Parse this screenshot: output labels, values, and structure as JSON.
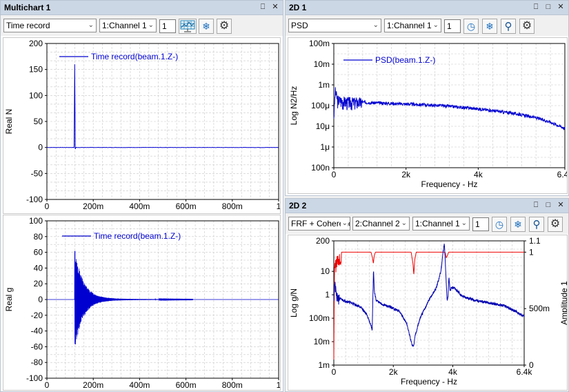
{
  "panels": {
    "multichart": {
      "title": "Multichart 1",
      "controls": {
        "pin": "⎕",
        "close": "✕"
      },
      "view_select": "Time record",
      "channel_select": "1:Channel 1",
      "spin_value": "1",
      "icons": [
        "waterfall-icon",
        "freeze-icon",
        "settings-icon"
      ]
    },
    "twod1": {
      "title": "2D 1",
      "controls": {
        "pin": "⎕",
        "max": "□",
        "close": "✕"
      },
      "view_select": "PSD",
      "channel_select": "1:Channel 1",
      "spin_value": "1",
      "icons": [
        "gauge-icon",
        "freeze-icon",
        "zoom-icon",
        "settings-icon"
      ]
    },
    "twod2": {
      "title": "2D 2",
      "controls": {
        "pin": "⎕",
        "max": "□",
        "close": "✕"
      },
      "view_select": "FRF + Coherence",
      "channel_select_a": "2:Channel 2",
      "channel_select_b": "1:Channel 1",
      "spin_value": "1",
      "icons": [
        "gauge-icon",
        "freeze-icon",
        "zoom-icon",
        "settings-icon"
      ]
    }
  },
  "chart_data": [
    {
      "id": "time-force",
      "type": "line",
      "ylabel": "Real N",
      "xlabel": "",
      "xlim": [
        0,
        1
      ],
      "ylim": [
        -100,
        200
      ],
      "x_ticks": [
        "0",
        "200m",
        "400m",
        "600m",
        "800m",
        "1"
      ],
      "y_ticks": [
        "200",
        "150",
        "100",
        "50",
        "0",
        "-50",
        "-100"
      ],
      "grid": true,
      "legend_placement": "top-left",
      "series": [
        {
          "name": "Time record(beam.1.Z-)",
          "color": "#0000d0",
          "impulse_at": 0.12,
          "peak": 160,
          "undershoot": -3
        }
      ]
    },
    {
      "id": "time-accel",
      "type": "line",
      "ylabel": "Real g",
      "xlabel": "",
      "xlim": [
        0,
        1
      ],
      "ylim": [
        -100,
        100
      ],
      "x_ticks": [
        "0",
        "200m",
        "400m",
        "600m",
        "800m",
        "1"
      ],
      "y_ticks": [
        "100",
        "80",
        "60",
        "40",
        "20",
        "0",
        "-20",
        "-40",
        "-60",
        "-80",
        "-100"
      ],
      "grid": true,
      "legend_placement": "top-center",
      "series": [
        {
          "name": "Time record(beam.1.Z-)",
          "color": "#0000d0",
          "onset": 0.12,
          "peak": 64,
          "min": -63,
          "decay_end": 0.63
        }
      ]
    },
    {
      "id": "psd",
      "type": "line",
      "ylabel": "Log N2/Hz",
      "xlabel": "Frequency - Hz",
      "xlim": [
        0,
        6400
      ],
      "y_log_range_exp": [
        -7,
        -1
      ],
      "x_ticks": [
        "0",
        "2k",
        "4k",
        "6.4k"
      ],
      "y_ticks": [
        "100m",
        "10m",
        "1m",
        "100μ",
        "10μ",
        "1μ",
        "100n"
      ],
      "grid": true,
      "legend_placement": "top-left",
      "series": [
        {
          "name": "PSD(beam.1.Z-)",
          "color": "#0000d0",
          "x": [
            0,
            40,
            100,
            300,
            600,
            1000,
            2000,
            3000,
            4000,
            5000,
            5600,
            6000,
            6400
          ],
          "y": [
            3e-05,
            0.0005,
            0.0002,
            0.00016,
            0.00015,
            0.00014,
            0.00012,
            0.0001,
            7e-05,
            4.2e-05,
            2.6e-05,
            1.6e-05,
            8e-06
          ]
        }
      ]
    },
    {
      "id": "frf-coherence",
      "type": "line",
      "ylabel": "Log g/N",
      "ylabel_right": "Amplitude 1",
      "xlabel": "Frequency - Hz",
      "xlim": [
        0,
        6400
      ],
      "y_log_range_exp": [
        -3,
        2.301
      ],
      "y_right_lim": [
        0,
        1.1
      ],
      "x_ticks": [
        "0",
        "2k",
        "4k",
        "6.4k"
      ],
      "y_ticks": [
        "200",
        "10",
        "1",
        "100m",
        "10m",
        "1m"
      ],
      "y_right_ticks": [
        "1.1",
        "1",
        "500m",
        "0"
      ],
      "grid": true,
      "series": [
        {
          "name": "FRF",
          "color": "#0000b0",
          "x": [
            0,
            30,
            100,
            300,
            600,
            900,
            1100,
            1250,
            1290,
            1310,
            1335,
            1360,
            1420,
            1600,
            1900,
            2200,
            2450,
            2620,
            2680,
            2740,
            2900,
            3200,
            3450,
            3600,
            3680,
            3715,
            3740,
            3780,
            3810,
            3840,
            3870,
            3910,
            3950,
            4050,
            4300,
            4700,
            5200,
            5700,
            6100,
            6400
          ],
          "y": [
            1,
            3,
            0.8,
            0.6,
            0.45,
            0.3,
            0.15,
            0.05,
            0.03,
            0.5,
            12,
            1.5,
            0.6,
            0.4,
            0.3,
            0.2,
            0.06,
            0.008,
            0.006,
            0.02,
            0.1,
            0.6,
            2,
            10,
            80,
            150,
            40,
            3,
            0.6,
            0.8,
            6,
            1.5,
            2,
            2,
            0.9,
            0.6,
            0.45,
            0.35,
            0.2,
            0.12
          ]
        },
        {
          "name": "Coherence",
          "color": "#ee0000",
          "x": [
            0,
            25,
            60,
            120,
            200,
            1250,
            1300,
            1330,
            1360,
            1400,
            2600,
            2660,
            2690,
            2720,
            2770,
            3740,
            3780,
            3820,
            3860,
            6400
          ],
          "y": [
            0.05,
            0.98,
            0.93,
            0.99,
            1.0,
            1.0,
            0.95,
            0.9,
            0.97,
            1.0,
            1.0,
            0.9,
            0.8,
            0.93,
            1.0,
            1.0,
            0.95,
            0.97,
            1.0,
            1.0
          ]
        }
      ]
    }
  ]
}
